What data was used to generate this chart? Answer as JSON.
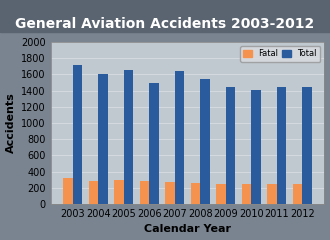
{
  "title": "General Aviation Accidents 2003-2012",
  "xlabel": "Calendar Year",
  "ylabel": "Accidents",
  "years": [
    2003,
    2004,
    2005,
    2006,
    2007,
    2008,
    2009,
    2010,
    2011,
    2012
  ],
  "fatal": [
    320,
    285,
    295,
    288,
    268,
    258,
    248,
    242,
    242,
    246
  ],
  "total": [
    1710,
    1600,
    1655,
    1495,
    1640,
    1545,
    1450,
    1405,
    1445,
    1445
  ],
  "fatal_color": "#F5924E",
  "total_color": "#2A5B9C",
  "fig_bg_color": "#7A8490",
  "title_bg_color": "#5A6370",
  "plot_bg_color": "#C0C8D0",
  "grid_color": "#D8DDE2",
  "ylim": [
    0,
    2000
  ],
  "yticks": [
    0,
    200,
    400,
    600,
    800,
    1000,
    1200,
    1400,
    1600,
    1800,
    2000
  ],
  "title_fontsize": 10,
  "label_fontsize": 8,
  "tick_fontsize": 7,
  "bar_width": 0.38
}
